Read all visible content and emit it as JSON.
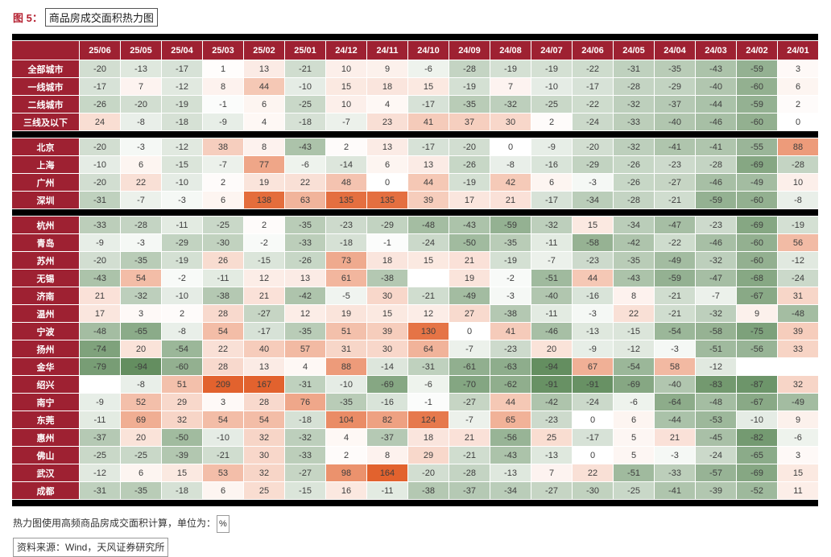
{
  "title": {
    "figure_label": "图 5：",
    "figure_title": "商品房成交面积热力图"
  },
  "footnotes": {
    "note": "热力图使用高频商品房成交面积计算，单位为：",
    "unit": "%",
    "source": "资料来源：Wind，天风证券研究所"
  },
  "chart_data": {
    "type": "heatmap",
    "title": "商品房成交面积热力图",
    "unit": "%",
    "columns": [
      "25/06",
      "25/05",
      "25/04",
      "25/03",
      "25/02",
      "25/01",
      "24/12",
      "24/11",
      "24/10",
      "24/09",
      "24/08",
      "24/07",
      "24/06",
      "24/05",
      "24/04",
      "24/03",
      "24/02",
      "24/01"
    ],
    "groups": [
      {
        "rows": [
          {
            "label": "全部城市",
            "values": [
              -20,
              -13,
              -17,
              1,
              13,
              -21,
              10,
              9,
              -6,
              -28,
              -19,
              -19,
              -22,
              -31,
              -35,
              -43,
              -59,
              3
            ]
          },
          {
            "label": "一线城市",
            "values": [
              -17,
              7,
              -12,
              8,
              44,
              -10,
              15,
              18,
              15,
              -19,
              7,
              -10,
              -17,
              -28,
              -29,
              -40,
              -60,
              6
            ]
          },
          {
            "label": "二线城市",
            "values": [
              -26,
              -20,
              -19,
              -1,
              6,
              -25,
              10,
              4,
              -17,
              -35,
              -32,
              -25,
              -22,
              -32,
              -37,
              -44,
              -59,
              2
            ]
          },
          {
            "label": "三线及以下",
            "values": [
              24,
              -8,
              -18,
              -9,
              4,
              -18,
              -7,
              23,
              41,
              37,
              30,
              2,
              -24,
              -33,
              -40,
              -46,
              -60,
              0
            ]
          }
        ]
      },
      {
        "rows": [
          {
            "label": "北京",
            "values": [
              -20,
              -3,
              -12,
              38,
              8,
              -43,
              2,
              13,
              -17,
              -20,
              0,
              -9,
              -20,
              -32,
              -41,
              -41,
              -55,
              88
            ]
          },
          {
            "label": "上海",
            "values": [
              -10,
              6,
              -15,
              -7,
              77,
              -6,
              -14,
              6,
              13,
              -26,
              -8,
              -16,
              -29,
              -26,
              -23,
              -28,
              -69,
              -28
            ]
          },
          {
            "label": "广州",
            "values": [
              -20,
              22,
              -10,
              2,
              19,
              22,
              48,
              0,
              44,
              -19,
              42,
              6,
              -3,
              -26,
              -27,
              -46,
              -49,
              10
            ]
          },
          {
            "label": "深圳",
            "values": [
              -31,
              -7,
              -3,
              6,
              138,
              63,
              135,
              135,
              39,
              17,
              21,
              -17,
              -34,
              -28,
              -21,
              -59,
              -60,
              -8
            ]
          }
        ]
      },
      {
        "rows": [
          {
            "label": "杭州",
            "values": [
              -33,
              -28,
              -11,
              -25,
              2,
              -35,
              -23,
              -29,
              -48,
              -43,
              -59,
              -32,
              15,
              -34,
              -47,
              -23,
              -69,
              -19
            ]
          },
          {
            "label": "青岛",
            "values": [
              -9,
              -3,
              -29,
              -30,
              -2,
              -33,
              -18,
              -1,
              -24,
              -50,
              -35,
              -11,
              -58,
              -42,
              -22,
              -46,
              -60,
              56
            ]
          },
          {
            "label": "苏州",
            "values": [
              -20,
              -35,
              -19,
              26,
              -15,
              -26,
              73,
              18,
              15,
              21,
              -19,
              -7,
              -23,
              -35,
              -49,
              -32,
              -60,
              -12
            ]
          },
          {
            "label": "无锡",
            "values": [
              -43,
              54,
              -2,
              -11,
              12,
              13,
              61,
              -38,
              null,
              19,
              -2,
              -51,
              44,
              -43,
              -59,
              -47,
              -68,
              -24
            ]
          },
          {
            "label": "济南",
            "values": [
              21,
              -32,
              -10,
              -38,
              21,
              -42,
              -5,
              30,
              -21,
              -49,
              -3,
              -40,
              -16,
              8,
              -21,
              -7,
              -67,
              31
            ]
          },
          {
            "label": "温州",
            "values": [
              17,
              3,
              2,
              28,
              -27,
              12,
              19,
              15,
              12,
              27,
              -38,
              -11,
              -3,
              22,
              -21,
              -32,
              9,
              -48
            ]
          },
          {
            "label": "宁波",
            "values": [
              -48,
              -65,
              -8,
              54,
              -17,
              -35,
              51,
              39,
              130,
              0,
              41,
              -46,
              -13,
              -15,
              -54,
              -58,
              -75,
              39
            ]
          },
          {
            "label": "扬州",
            "values": [
              -74,
              20,
              -54,
              22,
              40,
              57,
              31,
              30,
              64,
              -7,
              -23,
              20,
              -9,
              -12,
              -3,
              -51,
              -56,
              33
            ]
          },
          {
            "label": "金华",
            "values": [
              -79,
              -94,
              -60,
              28,
              13,
              4,
              88,
              -14,
              -31,
              -61,
              -63,
              -94,
              67,
              -54,
              58,
              -12,
              null,
              null
            ]
          },
          {
            "label": "绍兴",
            "values": [
              null,
              -8,
              51,
              209,
              167,
              -31,
              -10,
              -69,
              -6,
              -70,
              -62,
              -91,
              -91,
              -69,
              -40,
              -83,
              -87,
              32
            ]
          },
          {
            "label": "南宁",
            "values": [
              -9,
              52,
              29,
              3,
              28,
              76,
              -35,
              -16,
              -1,
              -27,
              44,
              -42,
              -24,
              -6,
              -64,
              -48,
              -67,
              -49
            ]
          },
          {
            "label": "东莞",
            "values": [
              -11,
              69,
              32,
              54,
              54,
              -18,
              104,
              82,
              124,
              -7,
              65,
              -23,
              0,
              6,
              -44,
              -53,
              -10,
              9
            ]
          },
          {
            "label": "惠州",
            "values": [
              -37,
              20,
              -50,
              -10,
              32,
              -32,
              4,
              -37,
              18,
              21,
              -56,
              25,
              -17,
              5,
              21,
              -45,
              -82,
              -6
            ]
          },
          {
            "label": "佛山",
            "values": [
              -25,
              -25,
              -39,
              -21,
              30,
              -33,
              2,
              8,
              29,
              -21,
              -43,
              -13,
              0,
              5,
              -3,
              -24,
              -65,
              3
            ]
          },
          {
            "label": "武汉",
            "values": [
              -12,
              6,
              15,
              53,
              32,
              -27,
              98,
              164,
              -20,
              -28,
              -13,
              7,
              22,
              -51,
              -33,
              -57,
              -69,
              15
            ]
          },
          {
            "label": "成都",
            "values": [
              -31,
              -35,
              -18,
              6,
              25,
              -15,
              16,
              -11,
              -38,
              -37,
              -34,
              -27,
              -30,
              -25,
              -41,
              -39,
              -52,
              11
            ]
          }
        ]
      }
    ],
    "colors": {
      "header_bg": "#9e2132",
      "positive_full": "#e2622e",
      "negative_full": "#4f7f4b",
      "separator": "#000000",
      "cell_text": "#3d3d3d",
      "title_red": "#b52131"
    },
    "scale": {
      "positive_max": 150,
      "negative_max": 110
    },
    "layout": {
      "label_col_width": 84,
      "data_col_width": 51
    }
  }
}
